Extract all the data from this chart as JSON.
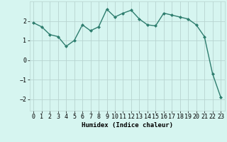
{
  "x": [
    0,
    1,
    2,
    3,
    4,
    5,
    6,
    7,
    8,
    9,
    10,
    11,
    12,
    13,
    14,
    15,
    16,
    17,
    18,
    19,
    20,
    21,
    22,
    23
  ],
  "y": [
    1.9,
    1.7,
    1.3,
    1.2,
    0.7,
    1.0,
    1.8,
    1.5,
    1.7,
    2.6,
    2.2,
    2.4,
    2.55,
    2.1,
    1.8,
    1.75,
    2.4,
    2.3,
    2.2,
    2.1,
    1.8,
    1.2,
    -0.7,
    -1.9
  ],
  "line_color": "#2e7d6e",
  "marker": "D",
  "marker_size": 2,
  "bg_color": "#d6f5f0",
  "grid_color": "#b8d4d0",
  "xlabel": "Humidex (Indice chaleur)",
  "xlim": [
    -0.5,
    23.5
  ],
  "ylim": [
    -2.6,
    3.0
  ],
  "yticks": [
    -2,
    -1,
    0,
    1,
    2
  ],
  "xticks": [
    0,
    1,
    2,
    3,
    4,
    5,
    6,
    7,
    8,
    9,
    10,
    11,
    12,
    13,
    14,
    15,
    16,
    17,
    18,
    19,
    20,
    21,
    22,
    23
  ],
  "xtick_labels": [
    "0",
    "1",
    "2",
    "3",
    "4",
    "5",
    "6",
    "7",
    "8",
    "9",
    "10",
    "11",
    "12",
    "13",
    "14",
    "15",
    "16",
    "17",
    "18",
    "19",
    "20",
    "21",
    "22",
    "23"
  ],
  "xlabel_fontsize": 6.5,
  "tick_fontsize": 6,
  "linewidth": 1.0
}
